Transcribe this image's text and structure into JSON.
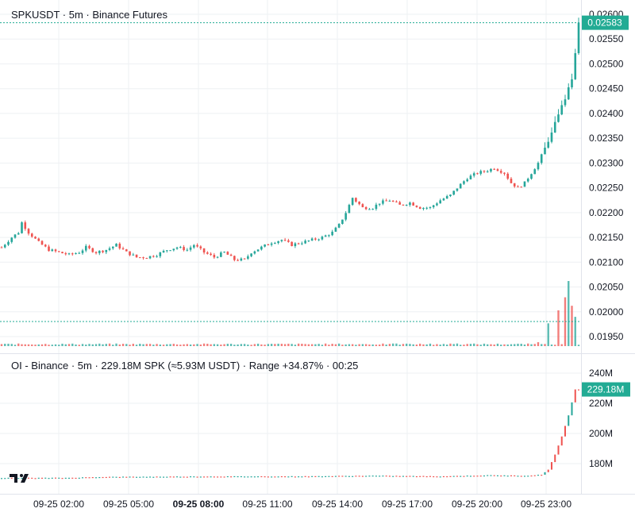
{
  "price_legend": {
    "text": "SPKUSDT · 5m · Binance Futures"
  },
  "oi_legend": {
    "text": "OI - Binance · 5m · 229.18M SPK (≈5.93M USDT) · Range +34.87% · 00:25"
  },
  "colors": {
    "up": "#26a69a",
    "down": "#ef5350",
    "accent": "#22ab94",
    "grid": "#eef0f3",
    "vol_up": "#26a69a",
    "vol_down": "#ef5350"
  },
  "chart_data": [
    {
      "type": "candlestick",
      "title": "SPKUSDT · 5m · Binance Futures",
      "ylim": [
        0.0193,
        0.026
      ],
      "yticks": [
        0.026,
        0.0255,
        0.025,
        0.0245,
        0.024,
        0.0235,
        0.023,
        0.0225,
        0.022,
        0.0215,
        0.021,
        0.0205,
        0.02,
        0.0195
      ],
      "ytick_labels": [
        "0.02600",
        "0.02550",
        "0.02500",
        "0.02450",
        "0.02400",
        "0.02350",
        "0.02300",
        "0.02250",
        "0.02200",
        "0.02150",
        "0.02100",
        "0.02050",
        "0.02000",
        "0.01950"
      ],
      "last_price": "0.02583",
      "last_price_value": 0.02583,
      "close_path": [
        [
          0,
          0.0213
        ],
        [
          3,
          0.0215
        ],
        [
          5,
          0.0216
        ],
        [
          6,
          0.0218
        ],
        [
          8,
          0.0216
        ],
        [
          11,
          0.0214
        ],
        [
          14,
          0.02125
        ],
        [
          17,
          0.0212
        ],
        [
          20,
          0.02115
        ],
        [
          23,
          0.0212
        ],
        [
          25,
          0.0213
        ],
        [
          28,
          0.0212
        ],
        [
          31,
          0.02125
        ],
        [
          34,
          0.02135
        ],
        [
          37,
          0.0212
        ],
        [
          40,
          0.0211
        ],
        [
          43,
          0.0211
        ],
        [
          46,
          0.02115
        ],
        [
          49,
          0.02125
        ],
        [
          52,
          0.0213
        ],
        [
          55,
          0.02125
        ],
        [
          57,
          0.02135
        ],
        [
          60,
          0.0212
        ],
        [
          63,
          0.0211
        ],
        [
          66,
          0.0212
        ],
        [
          69,
          0.02105
        ],
        [
          72,
          0.02105
        ],
        [
          74,
          0.0212
        ],
        [
          77,
          0.0213
        ],
        [
          80,
          0.0214
        ],
        [
          83,
          0.02145
        ],
        [
          86,
          0.02135
        ],
        [
          89,
          0.0214
        ],
        [
          92,
          0.02145
        ],
        [
          95,
          0.0215
        ],
        [
          98,
          0.0216
        ],
        [
          100,
          0.02175
        ],
        [
          102,
          0.022
        ],
        [
          104,
          0.0223
        ],
        [
          107,
          0.0221
        ],
        [
          110,
          0.0221
        ],
        [
          112,
          0.0222
        ],
        [
          115,
          0.02225
        ],
        [
          118,
          0.02215
        ],
        [
          121,
          0.0222
        ],
        [
          124,
          0.0221
        ],
        [
          127,
          0.0221
        ],
        [
          130,
          0.02225
        ],
        [
          133,
          0.02235
        ],
        [
          135,
          0.0225
        ],
        [
          138,
          0.0227
        ],
        [
          141,
          0.0228
        ],
        [
          144,
          0.02285
        ],
        [
          146,
          0.0229
        ],
        [
          149,
          0.0228
        ],
        [
          151,
          0.0226
        ],
        [
          153,
          0.0225
        ],
        [
          155,
          0.0226
        ],
        [
          157,
          0.0228
        ],
        [
          159,
          0.023
        ],
        [
          161,
          0.0233
        ],
        [
          163,
          0.0236
        ],
        [
          165,
          0.024
        ],
        [
          167,
          0.0243
        ],
        [
          169,
          0.0247
        ],
        [
          170,
          0.0252
        ],
        [
          171,
          0.02583
        ]
      ],
      "volume_spikes": [
        [
          103,
          0.03
        ],
        [
          135,
          0.04
        ],
        [
          159,
          0.06
        ],
        [
          162,
          0.35
        ],
        [
          165,
          0.55
        ],
        [
          167,
          0.75
        ],
        [
          168,
          1.0
        ],
        [
          169,
          0.62
        ],
        [
          170,
          0.45
        ]
      ]
    },
    {
      "type": "line",
      "title": "OI - Binance",
      "ylim": [
        166,
        246
      ],
      "yticks": [
        240,
        220,
        200,
        180
      ],
      "ytick_labels": [
        "240M",
        "220M",
        "200M",
        "180M"
      ],
      "last_value": "229.18M",
      "last_value_num": 229.18,
      "path": [
        [
          0,
          170.5
        ],
        [
          20,
          170.6
        ],
        [
          30,
          171.2
        ],
        [
          60,
          171.5
        ],
        [
          90,
          171.6
        ],
        [
          110,
          172.0
        ],
        [
          130,
          171.6
        ],
        [
          145,
          172.3
        ],
        [
          155,
          172.0
        ],
        [
          160,
          172.6
        ],
        [
          162,
          176
        ],
        [
          164,
          186
        ],
        [
          166,
          198
        ],
        [
          168,
          212
        ],
        [
          170,
          229.18
        ]
      ]
    }
  ],
  "x_axis": {
    "labels": [
      "09-25 02:00",
      "09-25 05:00",
      "09-25 08:00",
      "09-25 11:00",
      "09-25 14:00",
      "09-25 17:00",
      "09-25 20:00",
      "09-25 23:00"
    ],
    "bold_index": 2
  },
  "branding": {
    "logo": "TV"
  }
}
